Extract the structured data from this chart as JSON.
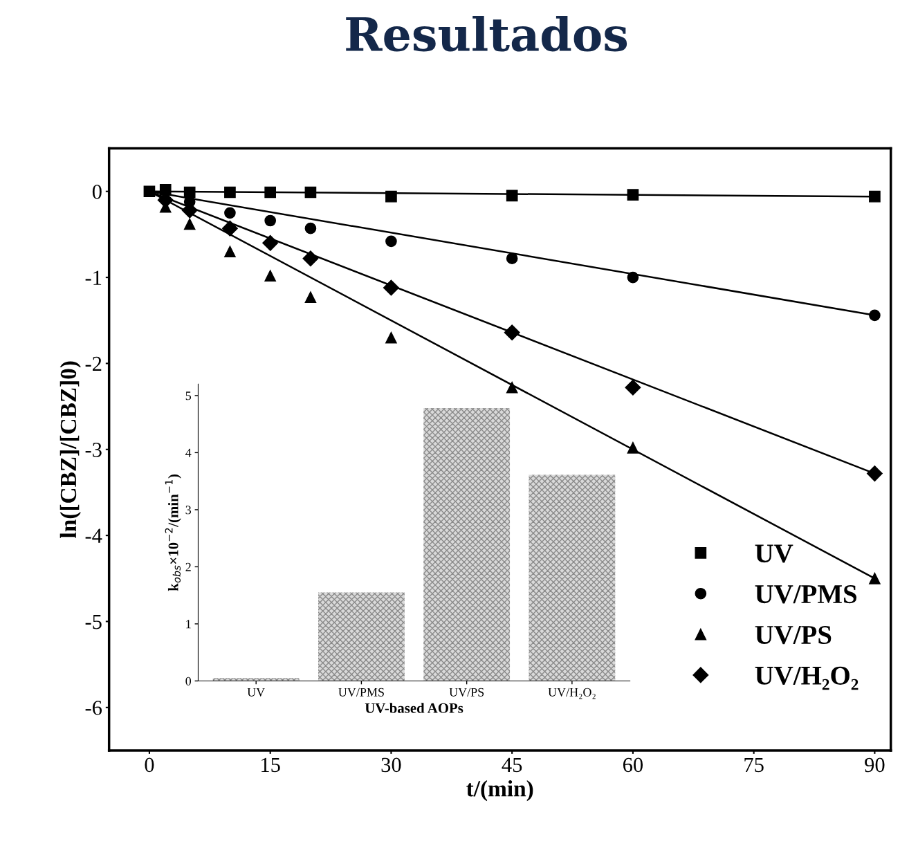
{
  "chart_data": [
    {
      "type": "scatter",
      "title": "Resultados",
      "xlabel": "t/(min)",
      "ylabel": "ln([CBZ]/[CBZ]0)",
      "xlim": [
        -5,
        92
      ],
      "ylim": [
        -6.5,
        0.5
      ],
      "xticks": [
        0,
        15,
        30,
        45,
        60,
        75,
        90
      ],
      "yticks": [
        -6,
        -5,
        -4,
        -3,
        -2,
        -1,
        0
      ],
      "legend": "bottom right",
      "grid": false,
      "series": [
        {
          "name": "UV",
          "type": "scatter",
          "marker": "square",
          "color": "#000000",
          "x": [
            0,
            2,
            5,
            10,
            15,
            20,
            30,
            45,
            60,
            90
          ],
          "values": [
            0,
            0.02,
            -0.01,
            -0.01,
            -0.01,
            -0.01,
            -0.06,
            -0.05,
            -0.04,
            -0.06
          ]
        },
        {
          "name": "UV/PMS",
          "type": "scatter",
          "marker": "circle",
          "color": "#000000",
          "x": [
            5,
            10,
            15,
            20,
            30,
            45,
            60,
            90
          ],
          "values": [
            -0.12,
            -0.25,
            -0.34,
            -0.43,
            -0.58,
            -0.78,
            -1.0,
            -1.44
          ]
        },
        {
          "name": "UV/PS",
          "type": "scatter",
          "marker": "triangle",
          "color": "#000000",
          "x": [
            2,
            5,
            10,
            15,
            20,
            30,
            45,
            60,
            90
          ],
          "values": [
            -0.18,
            -0.38,
            -0.7,
            -0.98,
            -1.23,
            -1.7,
            -2.28,
            -2.98,
            -4.5
          ]
        },
        {
          "name": "UV/H₂O₂",
          "type": "scatter",
          "marker": "diamond",
          "color": "#000000",
          "x": [
            2,
            5,
            10,
            15,
            20,
            30,
            45,
            60,
            90
          ],
          "values": [
            -0.1,
            -0.22,
            -0.43,
            -0.6,
            -0.78,
            -1.12,
            -1.64,
            -2.28,
            -3.28
          ]
        },
        {
          "type": "line",
          "color": "#000000",
          "x": [
            0,
            90
          ],
          "values": [
            0,
            -0.06
          ]
        },
        {
          "type": "line",
          "color": "#000000",
          "x": [
            0,
            90
          ],
          "values": [
            0,
            -1.44
          ]
        },
        {
          "type": "line",
          "color": "#000000",
          "x": [
            0,
            90
          ],
          "values": [
            0,
            -4.5
          ]
        },
        {
          "type": "line",
          "color": "#000000",
          "x": [
            0,
            90
          ],
          "values": [
            0,
            -3.28
          ]
        }
      ]
    },
    {
      "type": "bar",
      "xlabel": "UV-based AOPs",
      "ylabel": "k$_{obs}$×10$^{−2}$/(min$^{−1}$)",
      "categories": [
        "UV",
        "UV/PMS",
        "UV/PS",
        "UV/H₂O₂"
      ],
      "values": [
        0.05,
        1.55,
        4.78,
        3.61
      ],
      "color": "#d9d9d9",
      "ylim": [
        0,
        5.2
      ],
      "yticks": [
        0,
        1,
        2,
        3,
        4,
        5
      ],
      "grid": false
    }
  ]
}
